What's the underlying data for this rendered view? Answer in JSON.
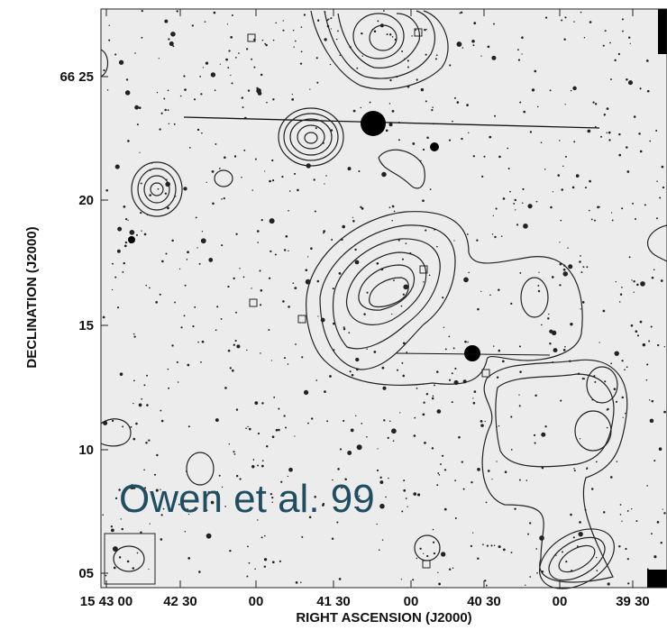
{
  "figure": {
    "x_axis": {
      "label": "RIGHT ASCENSION (J2000)",
      "ticks": [
        "15 43 00",
        "42 30",
        "00",
        "41 30",
        "00",
        "40 30",
        "00",
        "39 30"
      ]
    },
    "y_axis": {
      "label": "DECLINATION (J2000)",
      "ticks": [
        "66 25",
        "20",
        "15",
        "10",
        "05"
      ]
    },
    "annotation": "Owen et al. 99"
  }
}
